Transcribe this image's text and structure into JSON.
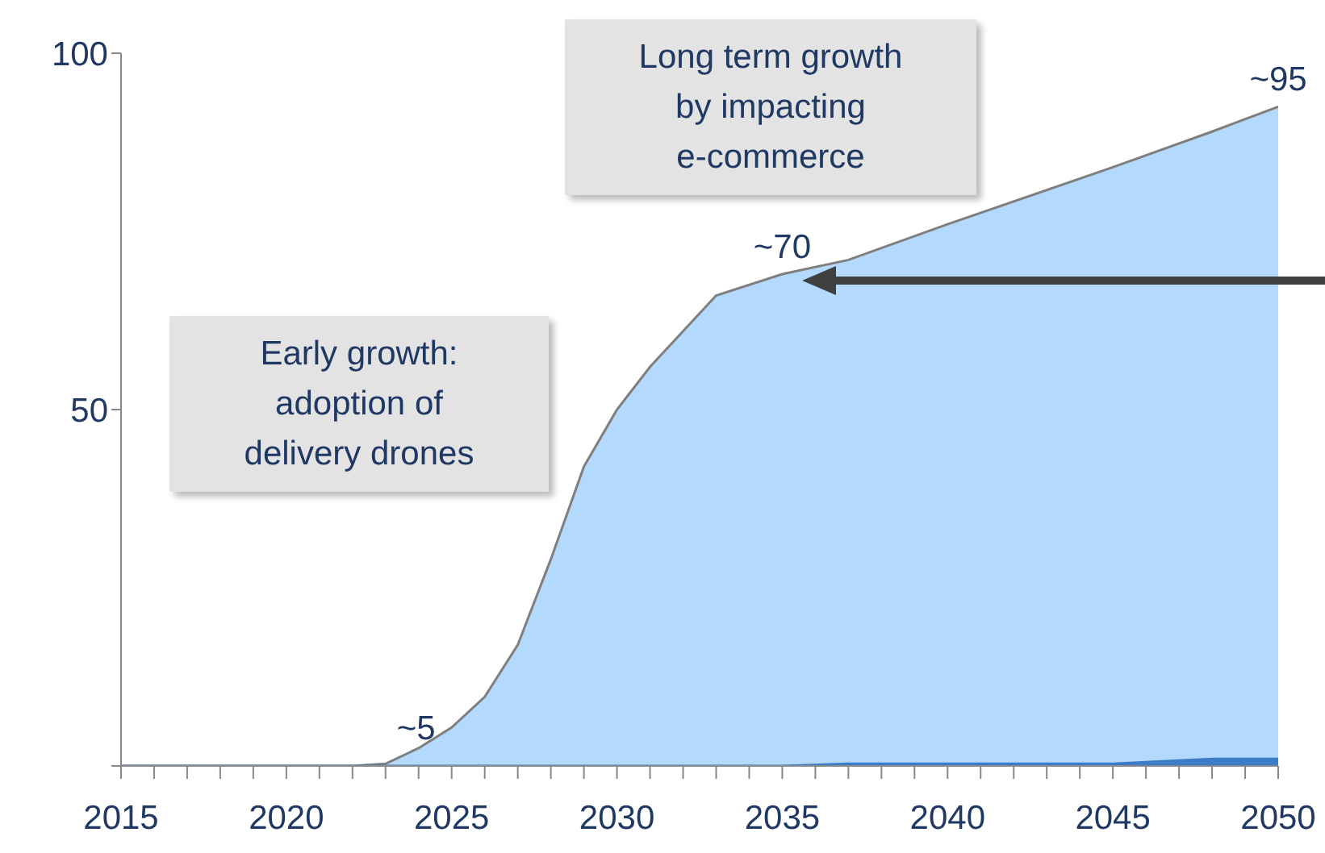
{
  "chart_data": {
    "type": "area",
    "x": [
      2015,
      2022,
      2023,
      2024,
      2025,
      2026,
      2027,
      2028,
      2029,
      2030,
      2031,
      2032,
      2033,
      2035,
      2037,
      2040,
      2045,
      2048,
      2050
    ],
    "series": [
      {
        "color": "#b3d9fd",
        "values": [
          0,
          0,
          0.3,
          2.5,
          5.4,
          9.7,
          17,
          29,
          42,
          50,
          56,
          61,
          66,
          69,
          71,
          76,
          84,
          89,
          92.5
        ]
      },
      {
        "color": "#3d7cc9",
        "values": [
          0,
          0,
          0,
          0,
          0,
          0,
          0,
          0,
          0,
          0,
          0,
          0,
          0,
          0,
          0.3,
          0.3,
          0.3,
          1,
          1
        ]
      }
    ],
    "xlim": [
      2015,
      2050
    ],
    "xticks": [
      2015,
      {
        "value": 2016,
        "label": null
      },
      {
        "value": 2017,
        "label": null
      },
      {
        "value": 2018,
        "label": null
      },
      {
        "value": 2019,
        "label": null
      },
      2020,
      {
        "value": 2021,
        "label": null
      },
      {
        "value": 2022,
        "label": null
      },
      {
        "value": 2023,
        "label": null
      },
      {
        "value": 2024,
        "label": null
      },
      2025,
      {
        "value": 2026,
        "label": null
      },
      {
        "value": 2027,
        "label": null
      },
      {
        "value": 2028,
        "label": null
      },
      {
        "value": 2029,
        "label": null
      },
      2030,
      {
        "value": 2031,
        "label": null
      },
      {
        "value": 2032,
        "label": null
      },
      {
        "value": 2033,
        "label": null
      },
      {
        "value": 2034,
        "label": null
      },
      2035,
      {
        "value": 2036,
        "label": null
      },
      {
        "value": 2037,
        "label": null
      },
      {
        "value": 2038,
        "label": null
      },
      {
        "value": 2039,
        "label": null
      },
      2040,
      {
        "value": 2041,
        "label": null
      },
      {
        "value": 2042,
        "label": null
      },
      {
        "value": 2043,
        "label": null
      },
      {
        "value": 2044,
        "label": null
      },
      2045,
      {
        "value": 2046,
        "label": null
      },
      {
        "value": 2047,
        "label": null
      },
      {
        "value": 2048,
        "label": null
      },
      {
        "value": 2049,
        "label": null
      },
      2050
    ],
    "ylim": [
      0,
      100
    ],
    "yticks": [
      {
        "value": 0,
        "label": null
      },
      50,
      100
    ],
    "grid": false,
    "annotations": [
      {
        "text": "~5",
        "x": 2025,
        "y": 5.4
      },
      {
        "text": "~70",
        "x": 2035,
        "y": 69
      },
      {
        "text": "~95",
        "x": 2050,
        "y": 92.5
      },
      "Long term growth by impacting e-commerce",
      "Early growth: adoption of delivery drones"
    ]
  }
}
